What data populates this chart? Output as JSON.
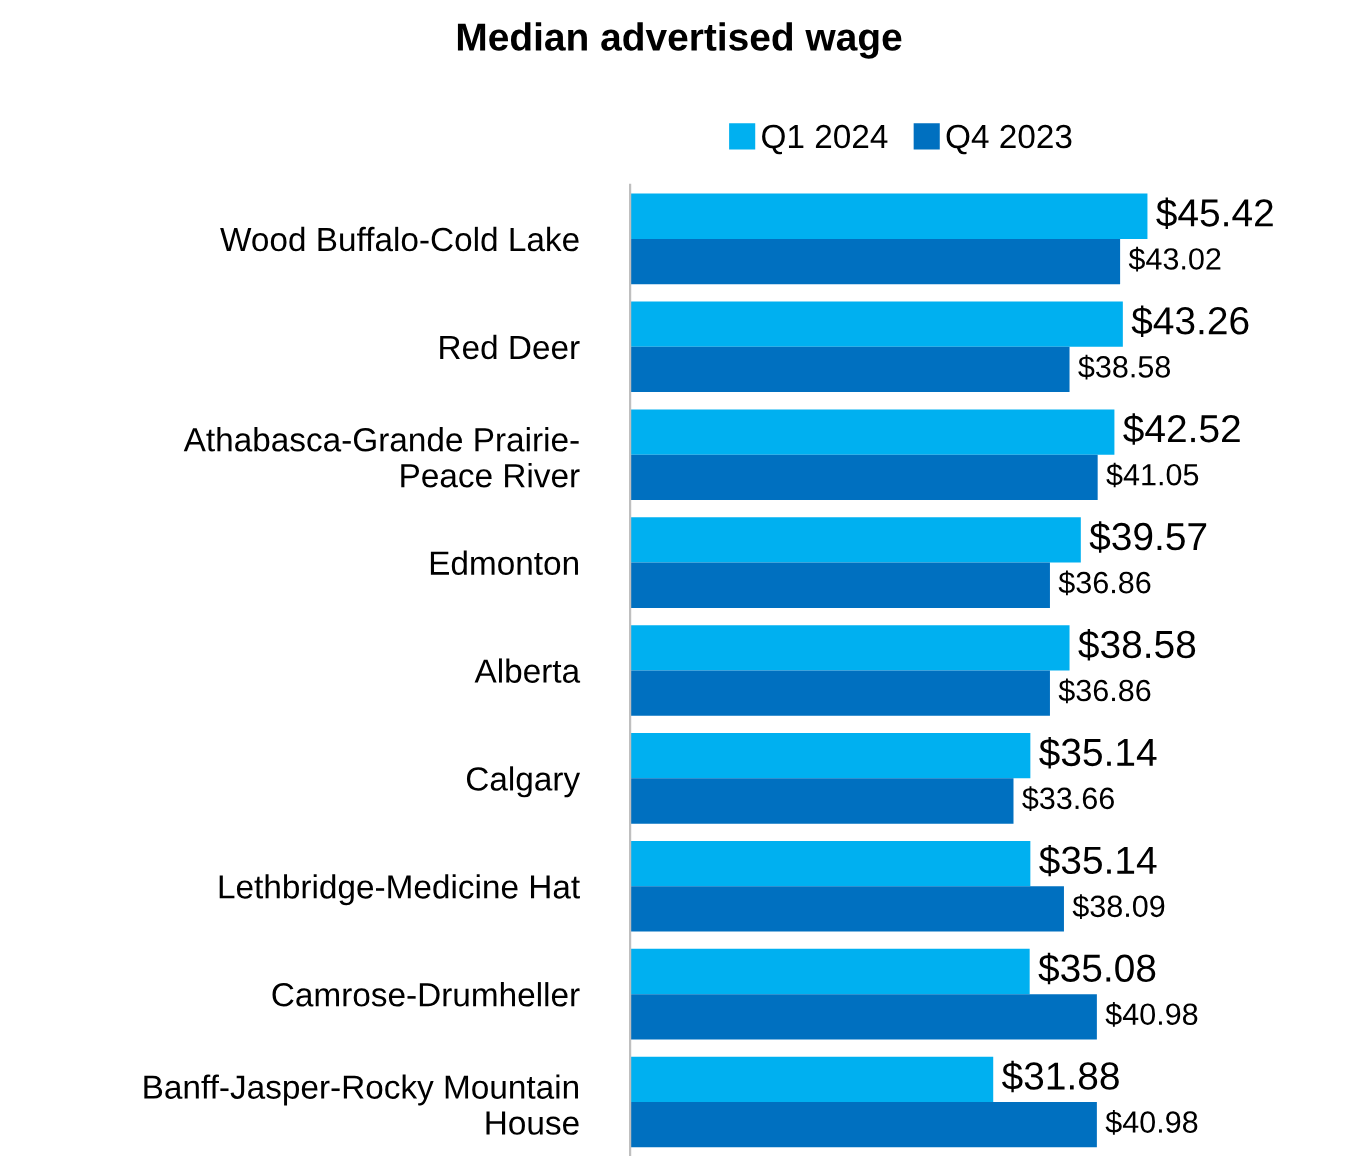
{
  "chart_data": {
    "type": "bar",
    "orientation": "horizontal",
    "title": "Median advertised wage",
    "categories": [
      "Wood Buffalo-Cold Lake",
      "Red Deer",
      "Athabasca-Grande Prairie-\nPeace River",
      "Edmonton",
      "Alberta",
      "Calgary",
      "Lethbridge-Medicine Hat",
      "Camrose-Drumheller",
      "Banff-Jasper-Rocky Mountain\nHouse"
    ],
    "series": [
      {
        "name": "Q1 2024",
        "color": "#00b0f0",
        "values": [
          45.42,
          43.26,
          42.52,
          39.57,
          38.58,
          35.14,
          35.14,
          35.08,
          31.88
        ],
        "value_labels": [
          "$45.42",
          "$43.26",
          "$42.52",
          "$39.57",
          "$38.58",
          "$35.14",
          "$35.14",
          "$35.08",
          "$31.88"
        ]
      },
      {
        "name": "Q4 2023",
        "color": "#0070c0",
        "values": [
          43.02,
          38.58,
          41.05,
          36.86,
          36.86,
          33.66,
          38.09,
          40.98,
          40.98
        ],
        "value_labels": [
          "$43.02",
          "$38.58",
          "$41.05",
          "$36.86",
          "$36.86",
          "$33.66",
          "$38.09",
          "$40.98",
          "$40.98"
        ]
      }
    ],
    "legend": "top",
    "grid": false
  }
}
